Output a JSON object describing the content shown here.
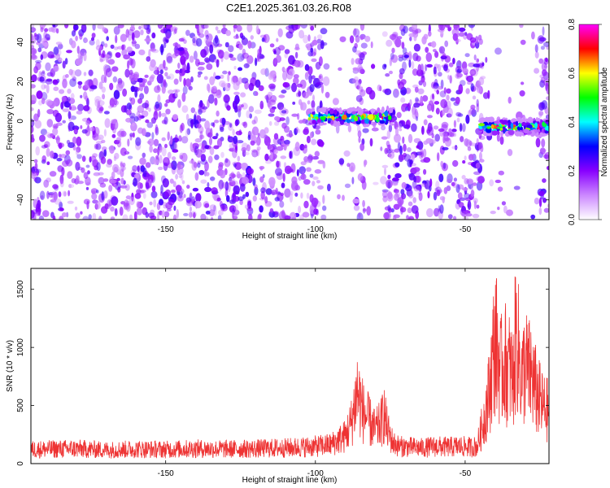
{
  "page": {
    "title": "C2E1.2025.361.03.26.R08"
  },
  "chart_data": [
    {
      "type": "heatmap",
      "title": "C2E1.2025.361.03.26.R08",
      "xlabel": "Height of straight line (km)",
      "ylabel": "Frequency (Hz)",
      "xlim": [
        -195,
        -22
      ],
      "ylim": [
        -50,
        49
      ],
      "x_ticks": [
        -150,
        -100,
        -50
      ],
      "y_ticks": [
        -40,
        -20,
        0,
        20,
        40
      ],
      "grid": false,
      "colorbar": {
        "label": "Normalized spectral amplitude",
        "range": [
          0.0,
          0.8
        ],
        "ticks": [
          0.0,
          0.2,
          0.4,
          0.6,
          0.8
        ],
        "colors": [
          "#ffffff",
          "#cc88ff",
          "#8800ff",
          "#0000ff",
          "#00ffff",
          "#00ff00",
          "#ffff00",
          "#ff0000",
          "#ff00ff"
        ]
      },
      "features": [
        {
          "x_range": [
            -102,
            -74
          ],
          "freq_center": 2,
          "peak_amplitude": 0.8
        },
        {
          "x_range": [
            -45,
            -22
          ],
          "freq_center": -3,
          "peak_amplitude": 0.8
        }
      ],
      "sparse_regions": [
        {
          "x_range": [
            -97,
            -88
          ]
        },
        {
          "x_range": [
            -83,
            -77
          ]
        },
        {
          "x_range": [
            -44,
            -25
          ]
        }
      ]
    },
    {
      "type": "line",
      "xlabel": "Height of straight line (km)",
      "ylabel": "SNR (10 * v/v)",
      "xlim": [
        -195,
        -22
      ],
      "ylim": [
        0,
        1680
      ],
      "x_ticks": [
        -150,
        -100,
        -50
      ],
      "y_ticks": [
        0,
        500,
        1000,
        1500
      ],
      "grid": false,
      "color": "#ee3333",
      "x": [
        -195,
        -180,
        -170,
        -160,
        -150,
        -140,
        -130,
        -120,
        -110,
        -105,
        -100,
        -95,
        -90,
        -88,
        -86,
        -84,
        -82,
        -80,
        -78,
        -77,
        -76,
        -74,
        -72,
        -68,
        -64,
        -60,
        -56,
        -52,
        -48,
        -46,
        -44,
        -42,
        -40,
        -38,
        -37,
        -36,
        -35,
        -34,
        -33,
        -31,
        -30,
        -29,
        -28,
        -27,
        -26,
        -24,
        -22
      ],
      "values": [
        180,
        190,
        175,
        185,
        180,
        190,
        185,
        190,
        200,
        210,
        220,
        240,
        350,
        520,
        930,
        650,
        540,
        420,
        520,
        640,
        430,
        260,
        220,
        210,
        200,
        220,
        210,
        220,
        210,
        220,
        520,
        900,
        1600,
        1150,
        1330,
        1220,
        1200,
        1050,
        1680,
        1050,
        1280,
        1150,
        1150,
        1000,
        880,
        720,
        660
      ]
    }
  ]
}
